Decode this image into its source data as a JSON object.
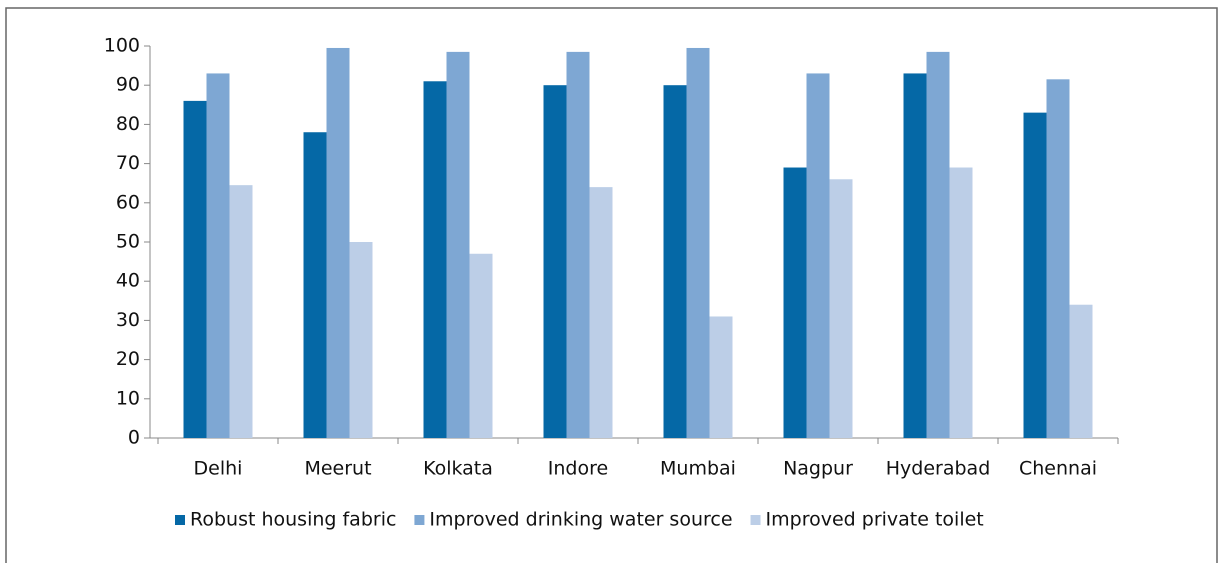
{
  "chart_data": {
    "type": "bar",
    "categories": [
      "Delhi",
      "Meerut",
      "Kolkata",
      "Indore",
      "Mumbai",
      "Nagpur",
      "Hyderabad",
      "Chennai"
    ],
    "series": [
      {
        "name": "Robust housing fabric",
        "color": "#0568a6",
        "values": [
          86,
          78,
          91,
          90,
          90,
          69,
          93,
          83
        ]
      },
      {
        "name": "Improved drinking water source",
        "color": "#7ea7d3",
        "values": [
          93,
          99.5,
          98.5,
          98.5,
          99.5,
          93,
          98.5,
          91.5
        ]
      },
      {
        "name": "Improved private toilet",
        "color": "#bccee7",
        "values": [
          64.5,
          50,
          47,
          64,
          31,
          66,
          69,
          34
        ]
      }
    ],
    "ylim": [
      0,
      100
    ],
    "yticks": [
      0,
      10,
      20,
      30,
      40,
      50,
      60,
      70,
      80,
      90,
      100
    ],
    "legend": "bottom"
  }
}
